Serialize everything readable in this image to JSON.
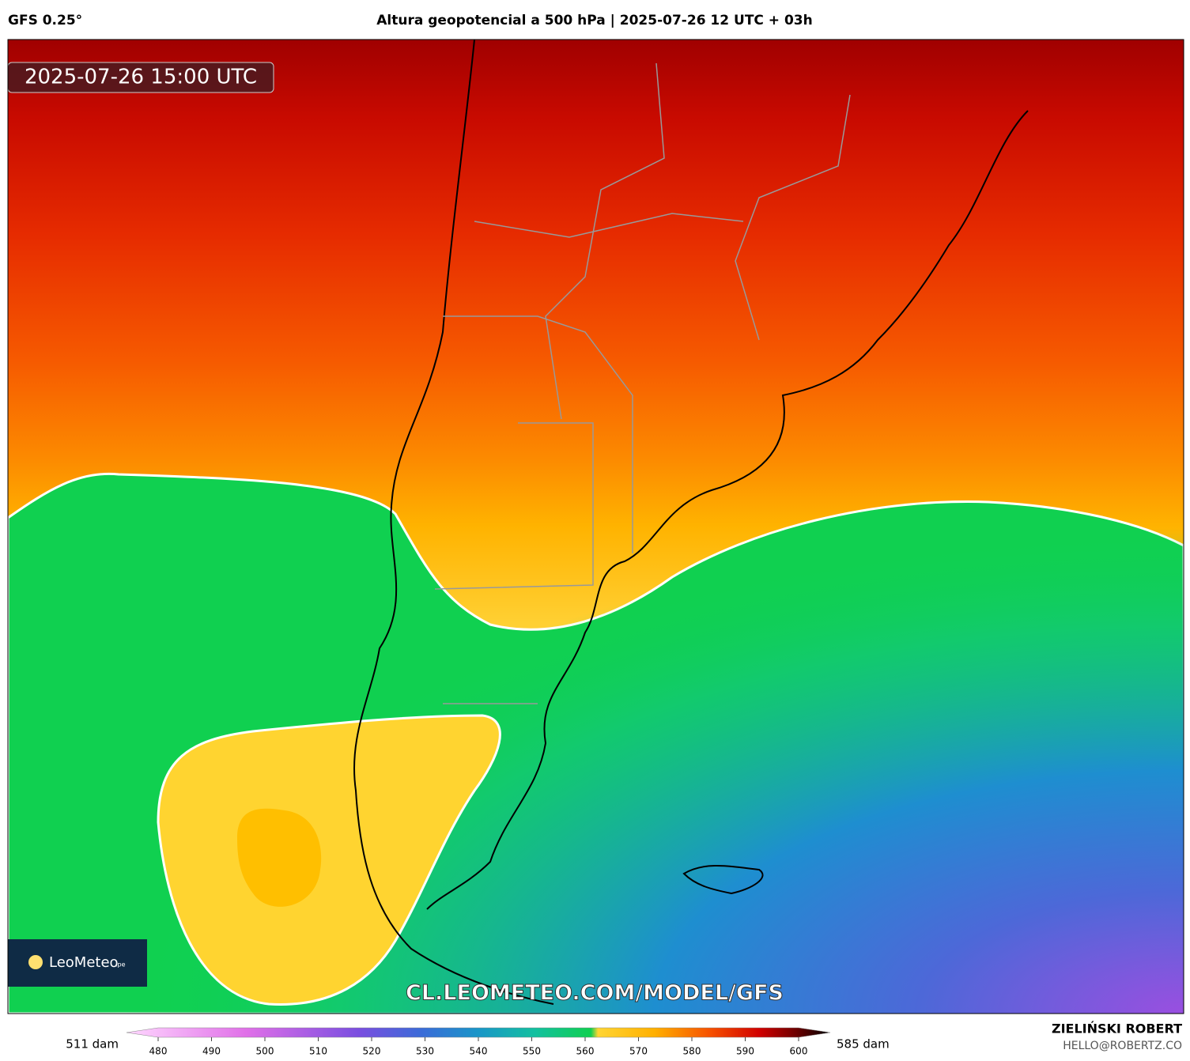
{
  "header": {
    "model": "GFS 0.25°",
    "title": "Altura geopotencial a 500 hPa | 2025-07-26 12 UTC + 03h"
  },
  "map": {
    "valid_time": "2025-07-26 15:00 UTC",
    "logo": "LeoMeteo",
    "logo_suffix": ".pe",
    "watermark": "CL.LEOMETEO.COM/MODEL/GFS"
  },
  "colorbar": {
    "min_label": "511 dam",
    "max_label": "585 dam",
    "lim": [
      480,
      600
    ],
    "ticks": [
      480,
      490,
      500,
      510,
      520,
      530,
      540,
      550,
      560,
      570,
      580,
      590,
      600
    ]
  },
  "footer": {
    "author": "ZIELIŃSKI ROBERT",
    "email": "HELLO@ROBERTZ.CO"
  }
}
